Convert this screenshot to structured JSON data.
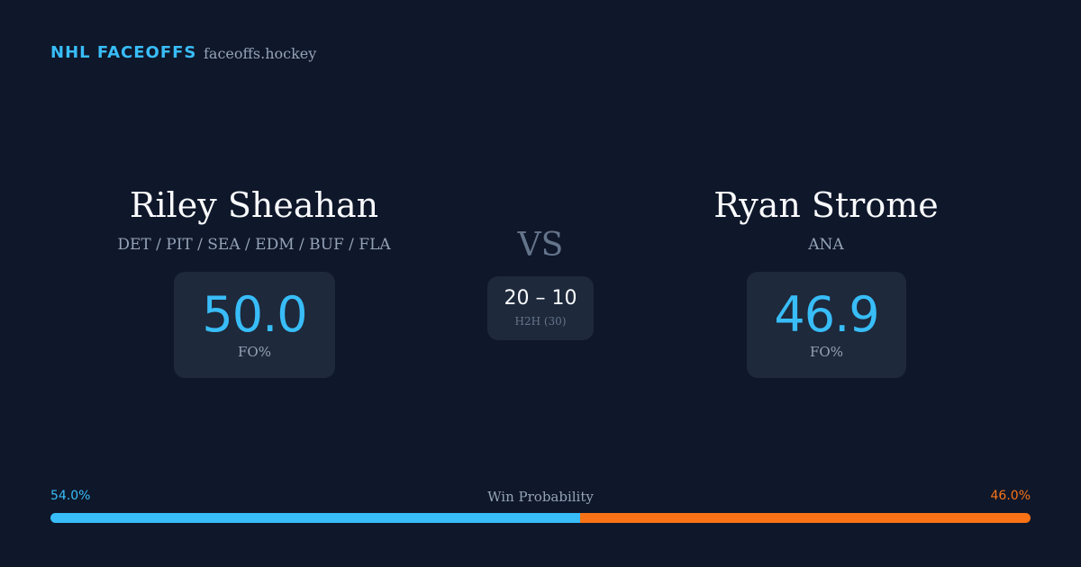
{
  "header": {
    "brand": "NHL FACEOFFS",
    "site": "faceoffs.hockey"
  },
  "players": [
    {
      "name": "Riley Sheahan",
      "teams": "DET / PIT / SEA / EDM / BUF / FLA",
      "fo": "50.0",
      "fo_label": "FO%"
    },
    {
      "name": "Ryan Strome",
      "teams": "ANA",
      "fo": "46.9",
      "fo_label": "FO%"
    }
  ],
  "vs": "VS",
  "h2h": {
    "score": "20 – 10",
    "label": "H2H (30)"
  },
  "win_probability": {
    "label": "Win Probability",
    "values": [
      54.0,
      46.0
    ],
    "value_labels": [
      "54.0%",
      "46.0%"
    ],
    "colors": [
      "#38bdf8",
      "#f97316"
    ]
  }
}
